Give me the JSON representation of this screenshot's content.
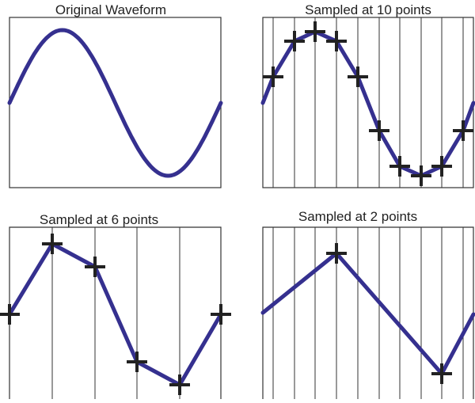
{
  "panels": [
    {
      "title": "Original Waveform"
    },
    {
      "title": "Sampled at 10 points"
    },
    {
      "title": "Sampled at 6 points"
    },
    {
      "title": "Sampled at 2 points"
    }
  ]
}
